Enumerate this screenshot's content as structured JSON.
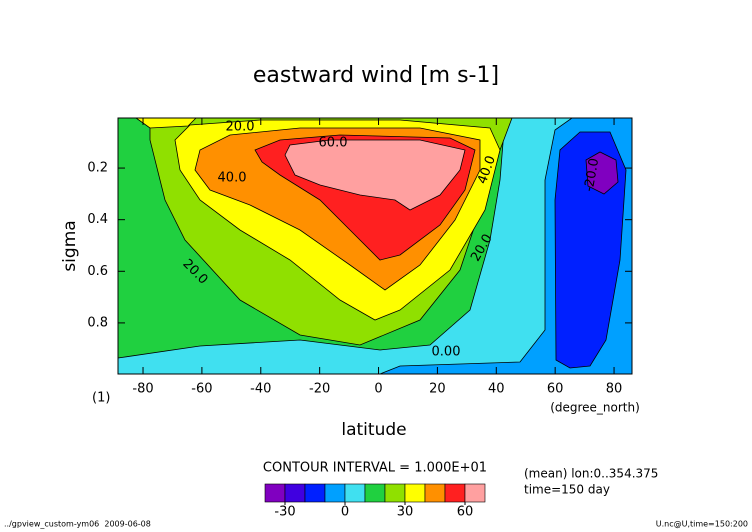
{
  "chart_data": {
    "type": "contour",
    "title": "eastward wind [m s-1]",
    "xlabel": "latitude",
    "ylabel": "sigma",
    "x_units": "(degree_north)",
    "panel_label": "(1)",
    "xlim": [
      -88.5,
      86.1
    ],
    "ylim": [
      0.998,
      0.006
    ],
    "xticks": [
      -80,
      -60,
      -40,
      -20,
      0,
      20,
      40,
      60,
      80
    ],
    "yticks": [
      0.2,
      0.4,
      0.6,
      0.8
    ],
    "contour_interval_text": "CONTOUR INTERVAL = 1.000E+01",
    "contour_labels": [
      "20.0",
      "60.0",
      "40.0",
      "40.0",
      "20.0",
      "20.0",
      "0.00",
      "-20.0"
    ],
    "colorbar": {
      "lim": [
        -40,
        70
      ],
      "ticks": [
        -30,
        0,
        30,
        60
      ],
      "colors": [
        "#8000c0",
        "#4000e0",
        "#0020ff",
        "#00a0ff",
        "#40e0f0",
        "#20d040",
        "#90e000",
        "#ffff00",
        "#ff9000",
        "#ff2020",
        "#ffa0a0"
      ]
    },
    "notes": [
      "(mean) lon:0..354.375",
      "time=150 day"
    ],
    "footer_left": "../gpview_custom-ym06  2009-06-08",
    "footer_right": "U.nc@U,time=150:200"
  }
}
